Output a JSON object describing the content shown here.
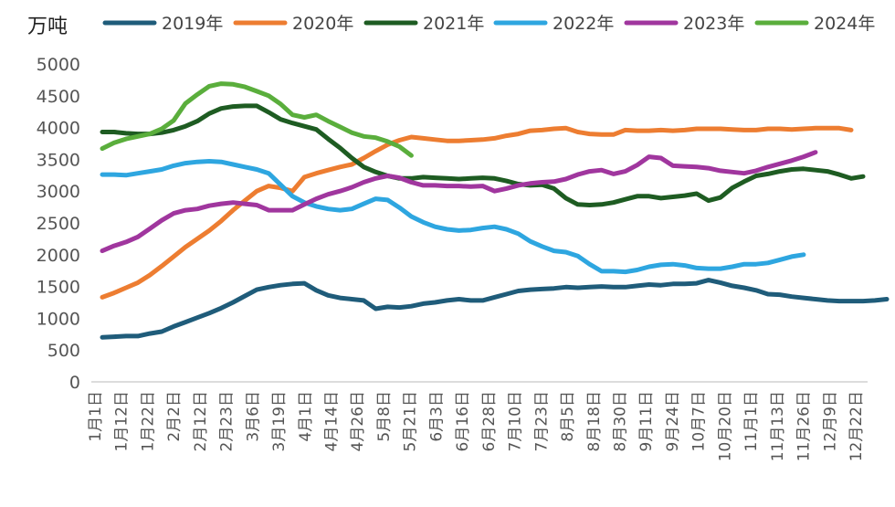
{
  "chart_data": {
    "type": "line",
    "unit_label": "万吨",
    "ylim": [
      0,
      5000
    ],
    "y_ticks": [
      0,
      500,
      1000,
      1500,
      2000,
      2500,
      3000,
      3500,
      4000,
      4500,
      5000
    ],
    "grid": false,
    "legend_position": "top",
    "x_tick_labels": [
      "1月1日",
      "1月12日",
      "1月22日",
      "2月2日",
      "2月12日",
      "2月23日",
      "3月6日",
      "3月19日",
      "4月1日",
      "4月14日",
      "4月26日",
      "5月8日",
      "5月21日",
      "6月3日",
      "6月16日",
      "6月28日",
      "7月10日",
      "7月23日",
      "8月5日",
      "8月18日",
      "8月30日",
      "9月11日",
      "9月24日",
      "10月7日",
      "10月20日",
      "11月1日",
      "11月13日",
      "11月26日",
      "12月9日",
      "12月22日"
    ],
    "series": [
      {
        "name": "2019年",
        "color": "#1f5c7a",
        "values": [
          700,
          710,
          720,
          720,
          760,
          790,
          870,
          940,
          1010,
          1080,
          1160,
          1250,
          1350,
          1450,
          1490,
          1520,
          1540,
          1550,
          1440,
          1360,
          1320,
          1300,
          1280,
          1150,
          1180,
          1170,
          1190,
          1230,
          1250,
          1280,
          1300,
          1280,
          1280,
          1330,
          1380,
          1430,
          1450,
          1460,
          1470,
          1490,
          1480,
          1490,
          1500,
          1490,
          1490,
          1510,
          1530,
          1520,
          1540,
          1540,
          1550,
          1600,
          1560,
          1510,
          1480,
          1440,
          1380,
          1370,
          1340,
          1320,
          1300,
          1280,
          1270,
          1270,
          1270,
          1280,
          1300
        ]
      },
      {
        "name": "2020年",
        "color": "#ed7d31",
        "values": [
          1330,
          1400,
          1480,
          1560,
          1680,
          1820,
          1970,
          2120,
          2250,
          2380,
          2530,
          2700,
          2850,
          3000,
          3080,
          3050,
          3000,
          3220,
          3280,
          3330,
          3380,
          3420,
          3520,
          3630,
          3730,
          3800,
          3850,
          3830,
          3810,
          3790,
          3790,
          3800,
          3810,
          3830,
          3870,
          3900,
          3950,
          3960,
          3980,
          3990,
          3930,
          3900,
          3890,
          3890,
          3960,
          3950,
          3950,
          3960,
          3950,
          3960,
          3980,
          3980,
          3980,
          3970,
          3960,
          3960,
          3980,
          3980,
          3970,
          3980,
          3990,
          3990,
          3990,
          3960
        ]
      },
      {
        "name": "2021年",
        "color": "#1e5c22",
        "values": [
          3930,
          3930,
          3910,
          3900,
          3900,
          3920,
          3960,
          4020,
          4100,
          4220,
          4300,
          4330,
          4340,
          4340,
          4240,
          4130,
          4070,
          4020,
          3970,
          3820,
          3680,
          3520,
          3380,
          3300,
          3240,
          3200,
          3200,
          3220,
          3210,
          3200,
          3190,
          3200,
          3210,
          3200,
          3160,
          3110,
          3090,
          3100,
          3040,
          2890,
          2790,
          2780,
          2790,
          2820,
          2870,
          2920,
          2920,
          2890,
          2910,
          2930,
          2960,
          2850,
          2900,
          3050,
          3150,
          3240,
          3270,
          3310,
          3340,
          3350,
          3330,
          3310,
          3260,
          3200,
          3230
        ]
      },
      {
        "name": "2022年",
        "color": "#2ea6e0",
        "values": [
          3260,
          3260,
          3250,
          3280,
          3310,
          3340,
          3400,
          3440,
          3460,
          3470,
          3460,
          3420,
          3380,
          3340,
          3280,
          3100,
          2920,
          2820,
          2760,
          2720,
          2700,
          2720,
          2800,
          2880,
          2860,
          2740,
          2600,
          2510,
          2440,
          2400,
          2380,
          2390,
          2420,
          2440,
          2400,
          2330,
          2210,
          2130,
          2060,
          2040,
          1980,
          1850,
          1740,
          1740,
          1730,
          1760,
          1810,
          1840,
          1850,
          1830,
          1790,
          1780,
          1780,
          1810,
          1850,
          1850,
          1870,
          1920,
          1970,
          2000
        ]
      },
      {
        "name": "2023年",
        "color": "#a0369e",
        "values": [
          2060,
          2140,
          2200,
          2280,
          2410,
          2540,
          2650,
          2700,
          2720,
          2770,
          2800,
          2820,
          2800,
          2780,
          2700,
          2700,
          2700,
          2790,
          2880,
          2950,
          3000,
          3060,
          3140,
          3200,
          3240,
          3210,
          3140,
          3090,
          3090,
          3080,
          3080,
          3070,
          3080,
          3000,
          3040,
          3090,
          3120,
          3140,
          3150,
          3190,
          3260,
          3310,
          3330,
          3270,
          3310,
          3410,
          3540,
          3520,
          3400,
          3390,
          3380,
          3360,
          3320,
          3300,
          3280,
          3320,
          3380,
          3430,
          3480,
          3540,
          3610
        ]
      },
      {
        "name": "2024年",
        "color": "#5aae3c",
        "values": [
          3670,
          3760,
          3820,
          3860,
          3900,
          3980,
          4110,
          4380,
          4520,
          4650,
          4690,
          4680,
          4640,
          4570,
          4500,
          4370,
          4200,
          4160,
          4200,
          4100,
          4010,
          3920,
          3860,
          3840,
          3780,
          3700,
          3560
        ]
      }
    ]
  }
}
